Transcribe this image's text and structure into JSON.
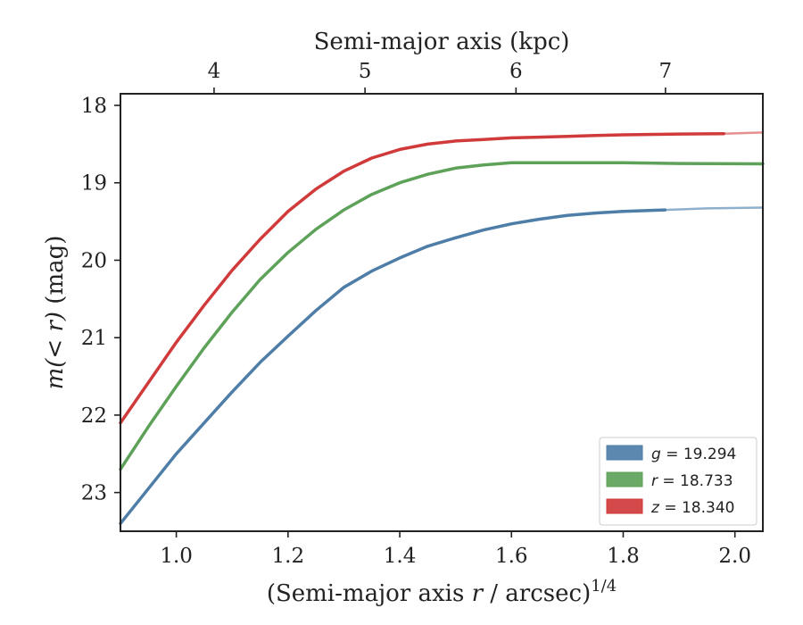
{
  "chart_data": {
    "type": "line",
    "title": "",
    "xlabel": "(Semi-major axis r / arcsec)^1/4",
    "xlabel_parts": {
      "prefix": "(Semi-major axis ",
      "var": "r",
      "suffix": " / arcsec)",
      "exponent": "1/4"
    },
    "ylabel": "m(<r) (mag)",
    "ylabel_parts": {
      "var": "m(< r)",
      "unit": " (mag)"
    },
    "top_xlabel": "Semi-major axis (kpc)",
    "xlim": [
      0.9,
      2.05
    ],
    "ylim": [
      23.5,
      17.85
    ],
    "y_inverted": true,
    "grid": false,
    "legend_placement": "lower-right",
    "x_ticks": [
      1.0,
      1.2,
      1.4,
      1.6,
      1.8,
      2.0
    ],
    "x_tick_labels": [
      "1.0",
      "1.2",
      "1.4",
      "1.6",
      "1.8",
      "2.0"
    ],
    "y_ticks": [
      18,
      19,
      20,
      21,
      22,
      23
    ],
    "y_tick_labels": [
      "18",
      "19",
      "20",
      "21",
      "22",
      "23"
    ],
    "top_ticks": [
      {
        "label": "4",
        "x": 1.0676
      },
      {
        "label": "5",
        "x": 1.3378
      },
      {
        "label": "6",
        "x": 1.6081
      },
      {
        "label": "7",
        "x": 1.8757
      }
    ],
    "series": [
      {
        "name": "g = 19.294",
        "legend_var": "g",
        "legend_value": "= 19.294",
        "color": "#4e7ea8",
        "faded_color": "#8eb0cc",
        "solid_end_x": 1.875,
        "x": [
          0.9,
          0.95,
          1.0,
          1.05,
          1.1,
          1.15,
          1.2,
          1.25,
          1.3,
          1.35,
          1.4,
          1.45,
          1.5,
          1.55,
          1.6,
          1.65,
          1.7,
          1.75,
          1.8,
          1.875,
          1.95,
          2.05
        ],
        "y": [
          23.4,
          22.95,
          22.5,
          22.1,
          21.7,
          21.32,
          20.98,
          20.65,
          20.35,
          20.14,
          19.97,
          19.82,
          19.71,
          19.61,
          19.53,
          19.47,
          19.42,
          19.39,
          19.37,
          19.35,
          19.33,
          19.32
        ]
      },
      {
        "name": "r = 18.733",
        "legend_var": "r",
        "legend_value": "= 18.733",
        "color": "#5ea25a",
        "faded_color": "#5ea25a",
        "solid_end_x": 2.05,
        "x": [
          0.9,
          0.95,
          1.0,
          1.05,
          1.1,
          1.15,
          1.2,
          1.25,
          1.3,
          1.35,
          1.4,
          1.45,
          1.5,
          1.55,
          1.6,
          1.65,
          1.7,
          1.75,
          1.8,
          1.9,
          2.05
        ],
        "y": [
          22.7,
          22.15,
          21.63,
          21.13,
          20.67,
          20.25,
          19.9,
          19.6,
          19.35,
          19.15,
          19.0,
          18.89,
          18.81,
          18.77,
          18.74,
          18.74,
          18.74,
          18.74,
          18.74,
          18.75,
          18.755
        ]
      },
      {
        "name": "z = 18.340",
        "legend_var": "z",
        "legend_value": "= 18.340",
        "color": "#d03a3a",
        "faded_color": "#e49090",
        "solid_end_x": 1.98,
        "x": [
          0.9,
          0.95,
          1.0,
          1.05,
          1.1,
          1.15,
          1.2,
          1.25,
          1.3,
          1.35,
          1.4,
          1.45,
          1.5,
          1.55,
          1.6,
          1.65,
          1.7,
          1.75,
          1.8,
          1.9,
          1.98,
          2.05
        ],
        "y": [
          22.1,
          21.58,
          21.06,
          20.58,
          20.13,
          19.73,
          19.37,
          19.08,
          18.85,
          18.68,
          18.57,
          18.5,
          18.46,
          18.44,
          18.42,
          18.41,
          18.4,
          18.39,
          18.38,
          18.37,
          18.365,
          18.35
        ]
      }
    ]
  }
}
